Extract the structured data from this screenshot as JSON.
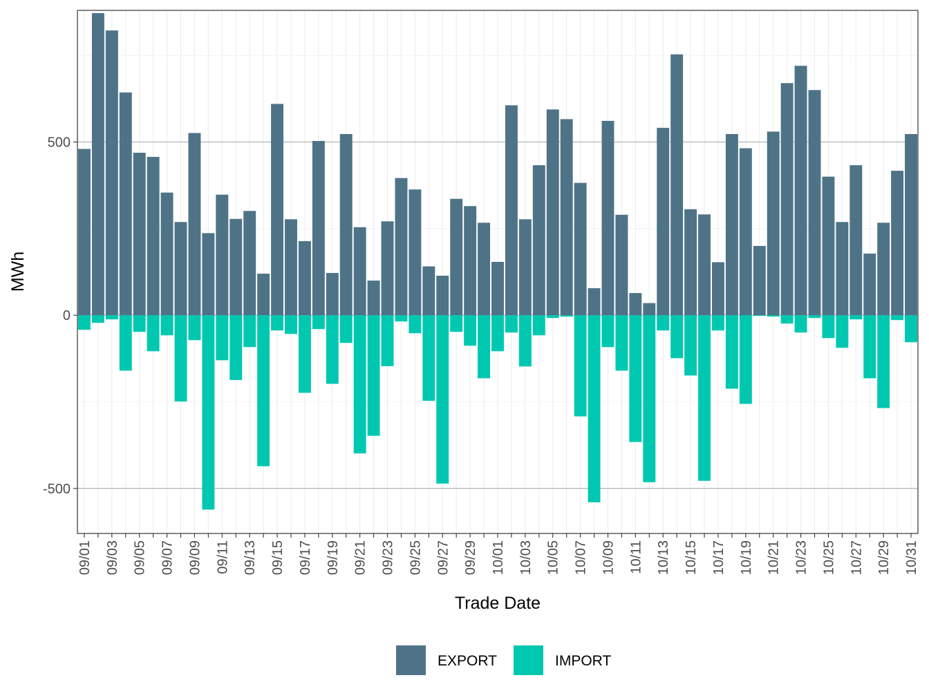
{
  "chart_data": {
    "type": "bar",
    "xlabel": "Trade Date",
    "ylabel": "MWh",
    "ylim": [
      -630,
      880
    ],
    "yticks": [
      -500,
      0,
      500
    ],
    "grid": true,
    "legend_position": "bottom",
    "categories": [
      "09/01",
      "09/02",
      "09/03",
      "09/04",
      "09/05",
      "09/06",
      "09/07",
      "09/08",
      "09/09",
      "09/10",
      "09/11",
      "09/12",
      "09/13",
      "09/14",
      "09/15",
      "09/16",
      "09/17",
      "09/18",
      "09/19",
      "09/20",
      "09/21",
      "09/22",
      "09/23",
      "09/24",
      "09/25",
      "09/26",
      "09/27",
      "09/28",
      "09/29",
      "09/30",
      "10/01",
      "10/02",
      "10/03",
      "10/04",
      "10/05",
      "10/06",
      "10/07",
      "10/08",
      "10/09",
      "10/10",
      "10/11",
      "10/12",
      "10/13",
      "10/14",
      "10/15",
      "10/16",
      "10/17",
      "10/18",
      "10/19",
      "10/20",
      "10/21",
      "10/22",
      "10/23",
      "10/24",
      "10/25",
      "10/26",
      "10/27",
      "10/28",
      "10/29",
      "10/30",
      "10/31"
    ],
    "tick_labels": [
      "09/01",
      "09/03",
      "09/05",
      "09/07",
      "09/09",
      "09/11",
      "09/13",
      "09/15",
      "09/17",
      "09/19",
      "09/21",
      "09/23",
      "09/25",
      "09/27",
      "09/29",
      "10/01",
      "10/03",
      "10/05",
      "10/07",
      "10/09",
      "10/11",
      "10/13",
      "10/15",
      "10/17",
      "10/19",
      "10/21",
      "10/23",
      "10/25",
      "10/27",
      "10/29",
      "10/31"
    ],
    "series": [
      {
        "name": "EXPORT",
        "color": "#4e7387",
        "values": [
          480,
          872,
          822,
          643,
          469,
          457,
          354,
          269,
          526,
          237,
          348,
          278,
          301,
          120,
          610,
          277,
          214,
          503,
          122,
          523,
          254,
          100,
          271,
          396,
          363,
          141,
          114,
          336,
          315,
          267,
          154,
          606,
          277,
          433,
          594,
          566,
          382,
          78,
          561,
          290,
          64,
          35,
          541,
          753,
          306,
          291,
          153,
          523,
          482,
          200,
          530,
          670,
          720,
          650,
          400,
          269,
          433,
          178,
          267,
          417,
          523
        ]
      },
      {
        "name": "IMPORT",
        "color": "#00c8b0",
        "values": [
          -42,
          -22,
          -12,
          -160,
          -48,
          -104,
          -58,
          -249,
          -72,
          -561,
          -130,
          -187,
          -92,
          -436,
          -44,
          -54,
          -224,
          -40,
          -198,
          -80,
          -399,
          -348,
          -147,
          -18,
          -52,
          -247,
          -486,
          -48,
          -88,
          -182,
          -104,
          -50,
          -148,
          -58,
          -8,
          -4,
          -292,
          -540,
          -92,
          -160,
          -366,
          -482,
          -44,
          -124,
          -174,
          -478,
          -44,
          -212,
          -256,
          -2,
          -4,
          -24,
          -50,
          -8,
          -66,
          -94,
          -12,
          -182,
          -268,
          -14,
          -78
        ]
      }
    ]
  }
}
